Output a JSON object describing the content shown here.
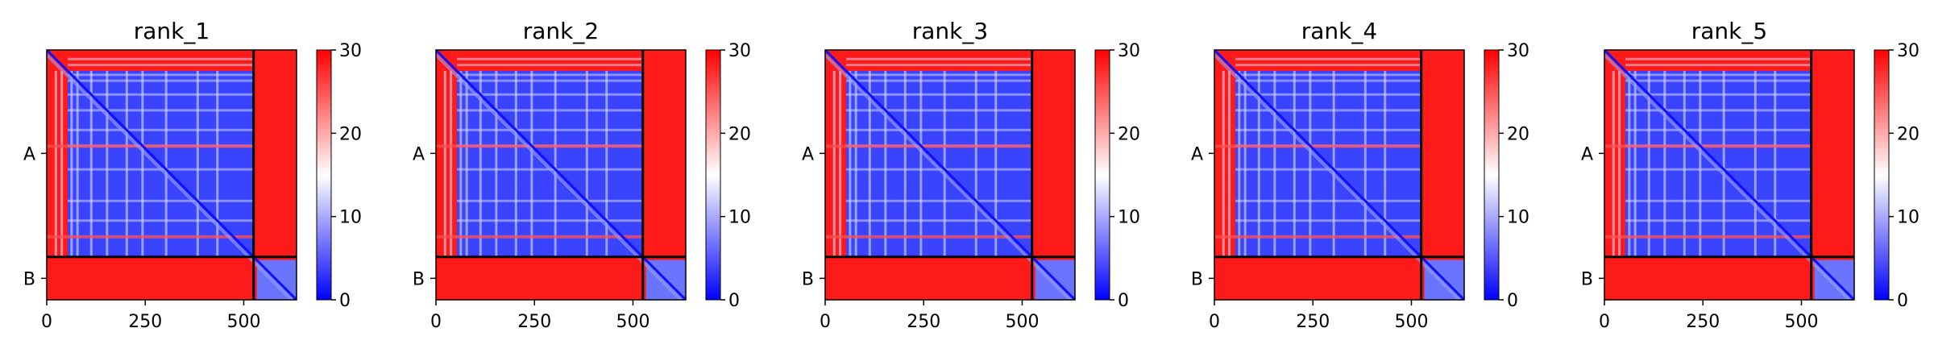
{
  "chart_data": {
    "type": "heatmap",
    "colormap": {
      "name": "bwr",
      "low": "#0000ff",
      "mid": "#ffffff",
      "high": "#ff0000"
    },
    "value_range": [
      0,
      30
    ],
    "x_ticks": [
      0,
      250,
      500
    ],
    "x_range": [
      0,
      634
    ],
    "chain_boundary": 525,
    "chains": [
      {
        "label": "A",
        "range": [
          0,
          525
        ]
      },
      {
        "label": "B",
        "range": [
          525,
          634
        ]
      }
    ],
    "colorbar_ticks": [
      0,
      10,
      20,
      30
    ],
    "panels": [
      {
        "title": "rank_1"
      },
      {
        "title": "rank_2"
      },
      {
        "title": "rank_3"
      },
      {
        "title": "rank_4"
      },
      {
        "title": "rank_5"
      }
    ]
  }
}
